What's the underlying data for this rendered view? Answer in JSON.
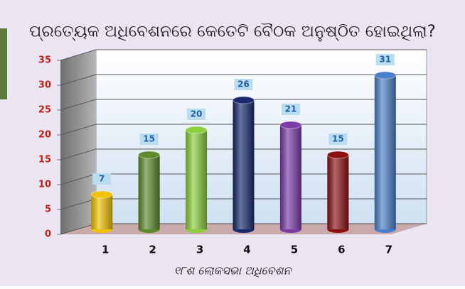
{
  "chart_data": {
    "type": "bar",
    "title": "ପ୍ରତ୍ୟେକ ଅଧିବେଶନରେ କେତେଟି ବୈଠକ ଅନୁଷ୍ଠିତ ହୋଇଥିଲା?",
    "x_label": "୧୮ଶ ଲୋକସଭା ଅଧିବେଶନ",
    "categories": [
      "1",
      "2",
      "3",
      "4",
      "5",
      "6",
      "7"
    ],
    "values": [
      7,
      15,
      20,
      26,
      21,
      15,
      31
    ],
    "colors": [
      "#f2c200",
      "#5e8a2c",
      "#8ccf3a",
      "#1b2a6e",
      "#7b3ca8",
      "#8c1212",
      "#4a80c9"
    ],
    "ylim": [
      0,
      35
    ],
    "yticks": [
      0,
      5,
      10,
      15,
      20,
      25,
      30,
      35
    ],
    "grid": true
  }
}
